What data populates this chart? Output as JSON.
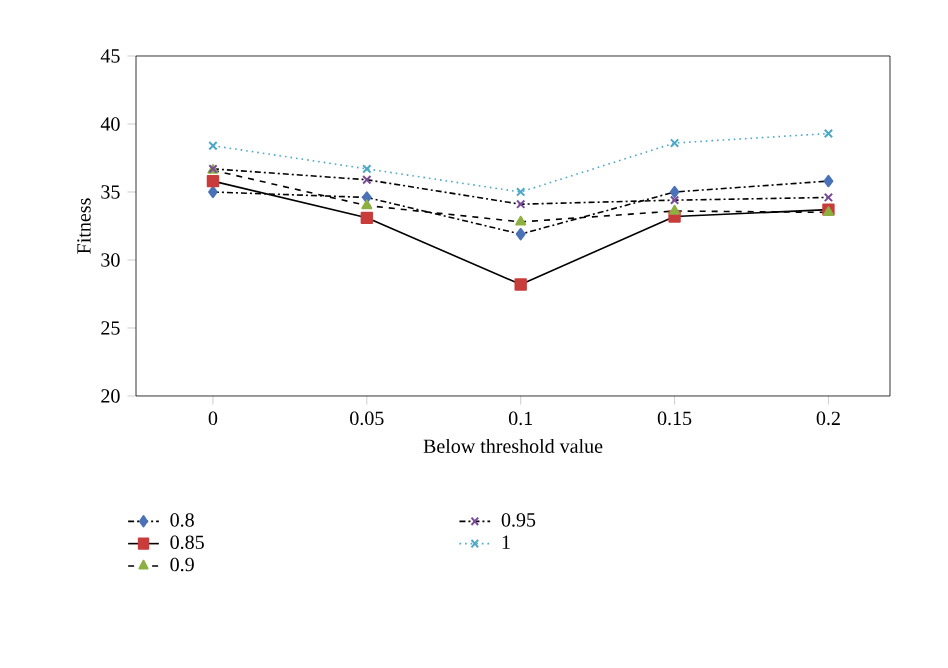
{
  "chart_data": {
    "type": "line",
    "xlabel": "Below threshold value",
    "ylabel": "Fitness",
    "x": [
      0,
      0.05,
      0.1,
      0.15,
      0.2
    ],
    "xlim": [
      -0.025,
      0.22
    ],
    "xticks": [
      0,
      0.05,
      0.1,
      0.15,
      0.2
    ],
    "ylim": [
      20,
      45
    ],
    "yticks": [
      20,
      25,
      30,
      35,
      40,
      45
    ],
    "grid": false,
    "legend": "bottom",
    "series": [
      {
        "name": "0.8",
        "color": "#4a72b8",
        "marker": "diamond",
        "line_style": "dashdot",
        "values": [
          35.0,
          34.6,
          31.9,
          35.0,
          35.8
        ]
      },
      {
        "name": "0.85",
        "color": "#c83c3c",
        "marker": "square",
        "line_style": "solid",
        "values": [
          35.8,
          33.1,
          28.2,
          33.2,
          33.7
        ]
      },
      {
        "name": "0.9",
        "color": "#8db040",
        "marker": "triangle",
        "line_style": "dashed",
        "values": [
          36.6,
          34.0,
          32.8,
          33.6,
          33.5
        ]
      },
      {
        "name": "0.95",
        "color": "#7a4a9a",
        "marker": "cross",
        "line_style": "dashdot",
        "values": [
          36.7,
          35.9,
          34.1,
          34.4,
          34.6
        ]
      },
      {
        "name": "1",
        "color": "#4aa8c8",
        "marker": "cross",
        "line_style": "dotted",
        "values": [
          38.4,
          36.7,
          35.0,
          38.6,
          39.3
        ]
      }
    ]
  }
}
